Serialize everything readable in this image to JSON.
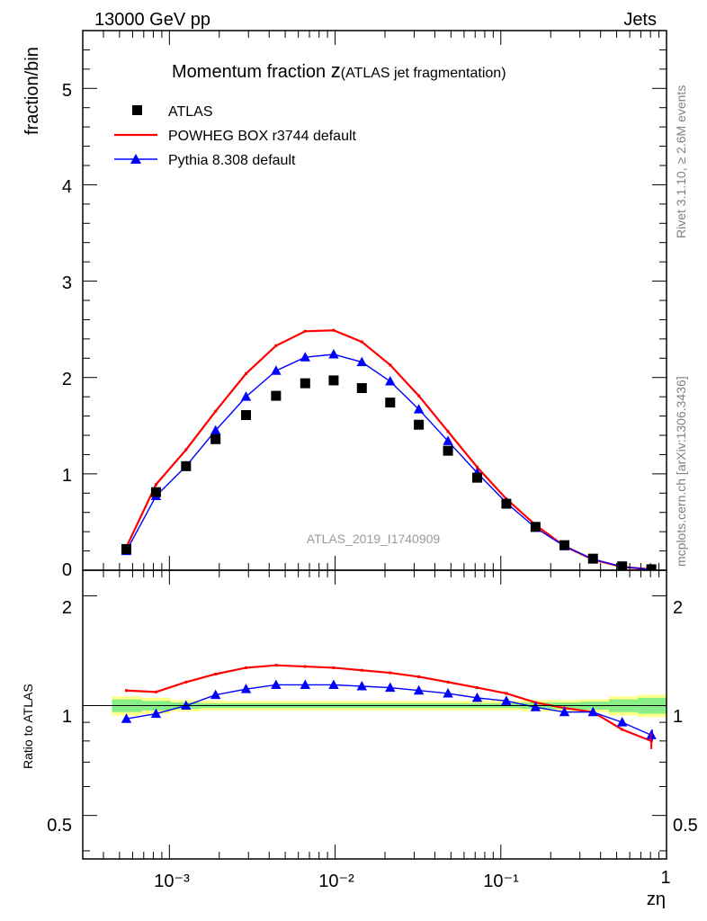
{
  "header": {
    "left": "13000 GeV pp",
    "right": "Jets"
  },
  "side_texts": {
    "rivet": "Rivet 3.1.10, ≥ 2.6M events",
    "mcplots": "mcplots.cern.ch [arXiv:1306.3436]"
  },
  "watermark": "ATLAS_2019_I1740909",
  "chart_data": {
    "type": "scatter",
    "title_main": "Momentum fraction ",
    "title_var": "z",
    "title_suffix": "(ATLAS jet fragmentation)",
    "xlabel": "zη",
    "ylabel": "fraction/bin",
    "ratio_ylabel": "Ratio to ATLAS",
    "xscale": "log",
    "xlim": [
      0.0003,
      1
    ],
    "ylim": [
      0,
      5.6
    ],
    "ratio_ylim": [
      0.38,
      2.35
    ],
    "legend_position": "top-left",
    "x_tick_labels": [
      "10⁻³",
      "10⁻²",
      "10⁻¹",
      "1"
    ],
    "y_tick_labels": [
      "0",
      "1",
      "2",
      "3",
      "4",
      "5"
    ],
    "ratio_tick_labels": [
      "0.5",
      "1",
      "2"
    ],
    "x": [
      0.00055,
      0.00083,
      0.00126,
      0.0019,
      0.0029,
      0.0044,
      0.0066,
      0.0098,
      0.0145,
      0.0215,
      0.032,
      0.048,
      0.072,
      0.108,
      0.162,
      0.242,
      0.36,
      0.54,
      0.81
    ],
    "series": [
      {
        "name": "ATLAS",
        "color": "#000000",
        "marker": "square",
        "values": [
          0.22,
          0.81,
          1.08,
          1.36,
          1.61,
          1.81,
          1.94,
          1.97,
          1.89,
          1.74,
          1.51,
          1.24,
          0.96,
          0.69,
          0.45,
          0.26,
          0.12,
          0.04,
          0.01
        ]
      },
      {
        "name": "POWHEG BOX r3744 default",
        "color": "#ff0000",
        "marker": "line",
        "values": [
          0.24,
          0.89,
          1.25,
          1.65,
          2.04,
          2.33,
          2.48,
          2.49,
          2.37,
          2.13,
          1.81,
          1.44,
          1.07,
          0.74,
          0.47,
          0.25,
          0.11,
          0.035,
          0.008
        ]
      },
      {
        "name": "Pythia 8.308 default",
        "color": "#0000ff",
        "marker": "triangle",
        "values": [
          0.2,
          0.77,
          1.08,
          1.45,
          1.8,
          2.07,
          2.21,
          2.24,
          2.16,
          1.96,
          1.67,
          1.34,
          1.01,
          0.7,
          0.44,
          0.25,
          0.115,
          0.036,
          0.008
        ]
      }
    ],
    "ratio_series": [
      {
        "name": "POWHEG BOX r3744 default",
        "color": "#ff0000",
        "values": [
          1.1,
          1.09,
          1.16,
          1.22,
          1.27,
          1.29,
          1.28,
          1.27,
          1.25,
          1.23,
          1.2,
          1.16,
          1.12,
          1.08,
          1.02,
          0.985,
          0.96,
          0.86,
          0.8
        ]
      },
      {
        "name": "Pythia 8.308 default",
        "color": "#0000ff",
        "values": [
          0.92,
          0.95,
          1.0,
          1.07,
          1.11,
          1.14,
          1.14,
          1.14,
          1.13,
          1.12,
          1.1,
          1.08,
          1.05,
          1.03,
          0.99,
          0.96,
          0.96,
          0.9,
          0.83
        ]
      }
    ],
    "ratio_errors": {
      "powheg_last": 0.04,
      "pythia_last": 0.03
    },
    "uncertainty_bands": {
      "x_edges": [
        0.00045,
        0.00068,
        0.00102,
        0.00154,
        0.0023,
        0.0035,
        0.0052,
        0.0078,
        0.0117,
        0.0176,
        0.0263,
        0.0394,
        0.059,
        0.089,
        0.133,
        0.2,
        0.3,
        0.45,
        0.67,
        1.0
      ],
      "inner_lo": [
        0.96,
        0.97,
        0.98,
        0.985,
        0.985,
        0.985,
        0.985,
        0.985,
        0.985,
        0.985,
        0.985,
        0.985,
        0.985,
        0.985,
        0.98,
        0.98,
        0.975,
        0.96,
        0.95
      ],
      "inner_hi": [
        1.04,
        1.03,
        1.02,
        1.015,
        1.015,
        1.015,
        1.015,
        1.015,
        1.015,
        1.015,
        1.015,
        1.015,
        1.015,
        1.015,
        1.02,
        1.02,
        1.025,
        1.04,
        1.05
      ],
      "outer_lo": [
        0.94,
        0.95,
        0.965,
        0.97,
        0.97,
        0.97,
        0.97,
        0.97,
        0.97,
        0.97,
        0.97,
        0.97,
        0.97,
        0.97,
        0.965,
        0.965,
        0.96,
        0.94,
        0.93
      ],
      "outer_hi": [
        1.06,
        1.05,
        1.035,
        1.03,
        1.03,
        1.03,
        1.03,
        1.03,
        1.03,
        1.03,
        1.03,
        1.03,
        1.03,
        1.03,
        1.035,
        1.035,
        1.04,
        1.06,
        1.07
      ],
      "inner_color": "#88ee88",
      "outer_color": "#ffff88"
    }
  }
}
